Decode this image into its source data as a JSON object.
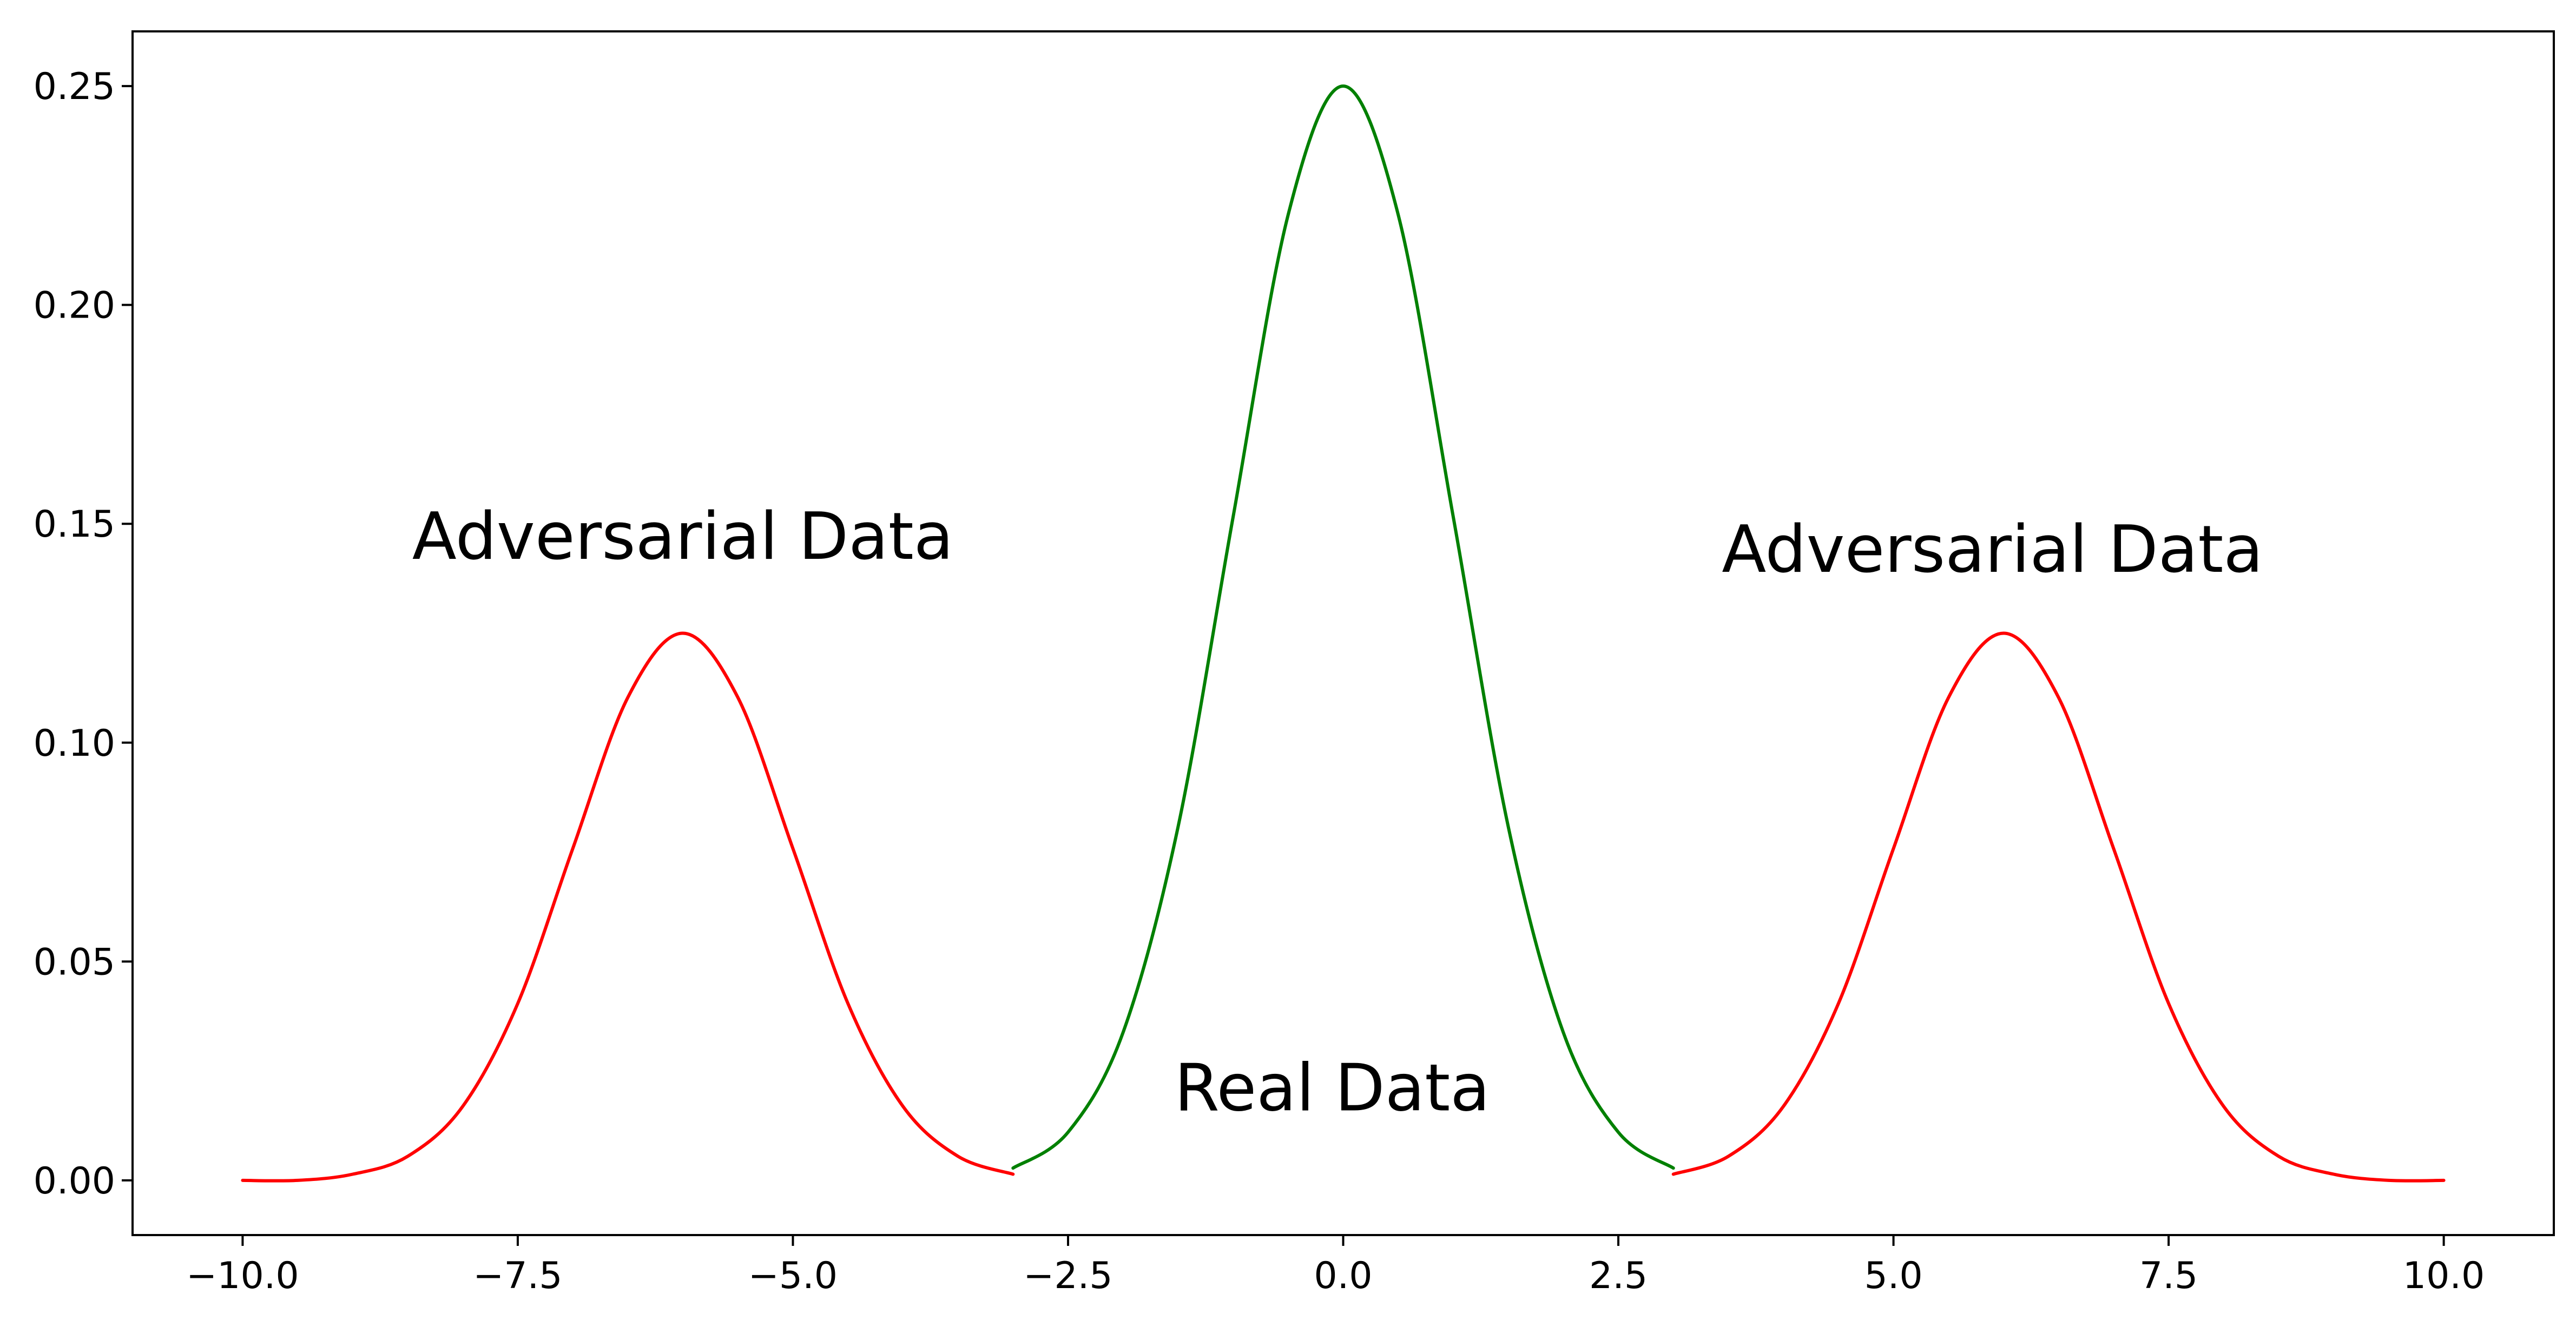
{
  "chart_data": {
    "type": "line",
    "title": "",
    "xlabel": "",
    "ylabel": "",
    "xlim": [
      -11.0,
      11.0
    ],
    "ylim": [
      -0.0125,
      0.2625
    ],
    "grid": false,
    "legend": "none",
    "x_ticks": [
      -10.0,
      -7.5,
      -5.0,
      -2.5,
      0.0,
      2.5,
      5.0,
      7.5,
      10.0
    ],
    "x_tick_labels": [
      "−10.0",
      "−7.5",
      "−5.0",
      "−2.5",
      "0.0",
      "2.5",
      "5.0",
      "7.5",
      "10.0"
    ],
    "y_ticks": [
      0.0,
      0.05,
      0.1,
      0.15,
      0.2,
      0.25
    ],
    "y_tick_labels": [
      "0.00",
      "0.05",
      "0.10",
      "0.15",
      "0.20",
      "0.25"
    ],
    "series": [
      {
        "color": "#ff0000",
        "x": [
          -10.0,
          -9.5,
          -9.0,
          -8.5,
          -8.0,
          -7.5,
          -7.0,
          -6.5,
          -6.0,
          -5.5,
          -5.0,
          -4.5,
          -4.0,
          -3.5,
          -3.0
        ],
        "y": [
          0.0,
          0.0,
          0.0014,
          0.0055,
          0.0169,
          0.0404,
          0.0758,
          0.1103,
          0.125,
          0.1103,
          0.0758,
          0.0404,
          0.0169,
          0.0055,
          0.0014
        ]
      },
      {
        "color": "#008000",
        "x": [
          -3.0,
          -2.5,
          -2.0,
          -1.5,
          -1.0,
          -0.5,
          0.0,
          0.5,
          1.0,
          1.5,
          2.0,
          2.5,
          3.0
        ],
        "y": [
          0.0028,
          0.011,
          0.0338,
          0.0808,
          0.1516,
          0.2206,
          0.25,
          0.2206,
          0.1516,
          0.0808,
          0.0338,
          0.011,
          0.0028
        ]
      },
      {
        "color": "#ff0000",
        "x": [
          3.0,
          3.5,
          4.0,
          4.5,
          5.0,
          5.5,
          6.0,
          6.5,
          7.0,
          7.5,
          8.0,
          8.5,
          9.0,
          9.5,
          10.0
        ],
        "y": [
          0.0014,
          0.0055,
          0.0169,
          0.0404,
          0.0758,
          0.1103,
          0.125,
          0.1103,
          0.0758,
          0.0404,
          0.0169,
          0.0055,
          0.0014,
          0.0,
          0.0
        ]
      }
    ],
    "annotations": [
      {
        "text": "Adversarial Data",
        "x": -6.0,
        "y": 0.142
      },
      {
        "text": "Real Data",
        "x": -0.1,
        "y": 0.016
      },
      {
        "text": "Adversarial Data",
        "x": 5.9,
        "y": 0.139
      }
    ]
  }
}
